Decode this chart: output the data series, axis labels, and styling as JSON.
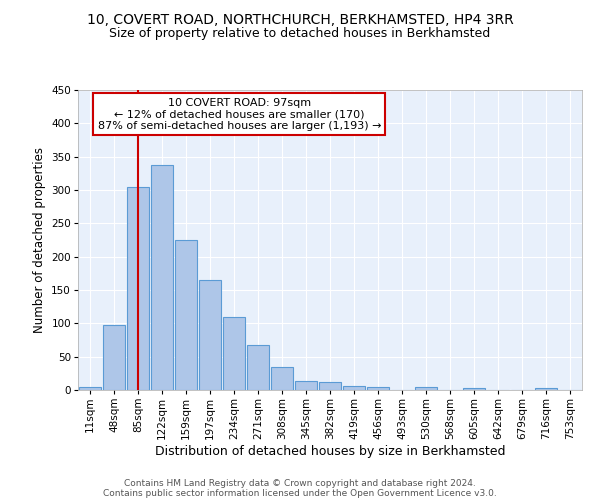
{
  "title1": "10, COVERT ROAD, NORTHCHURCH, BERKHAMSTED, HP4 3RR",
  "title2": "Size of property relative to detached houses in Berkhamsted",
  "xlabel": "Distribution of detached houses by size in Berkhamsted",
  "ylabel": "Number of detached properties",
  "bar_labels": [
    "11sqm",
    "48sqm",
    "85sqm",
    "122sqm",
    "159sqm",
    "197sqm",
    "234sqm",
    "271sqm",
    "308sqm",
    "345sqm",
    "382sqm",
    "419sqm",
    "456sqm",
    "493sqm",
    "530sqm",
    "568sqm",
    "605sqm",
    "642sqm",
    "679sqm",
    "716sqm",
    "753sqm"
  ],
  "bar_values": [
    4,
    97,
    304,
    338,
    225,
    165,
    109,
    67,
    35,
    13,
    12,
    6,
    4,
    0,
    4,
    0,
    3,
    0,
    0,
    3,
    0
  ],
  "bar_color": "#aec6e8",
  "bar_edge_color": "#5b9bd5",
  "vline_x": 2,
  "vline_color": "#cc0000",
  "annotation_line1": "10 COVERT ROAD: 97sqm",
  "annotation_line2": "← 12% of detached houses are smaller (170)",
  "annotation_line3": "87% of semi-detached houses are larger (1,193) →",
  "annotation_box_color": "#ffffff",
  "annotation_box_edge": "#cc0000",
  "ylim": [
    0,
    450
  ],
  "yticks": [
    0,
    50,
    100,
    150,
    200,
    250,
    300,
    350,
    400,
    450
  ],
  "background_color": "#e8f0fb",
  "footer_line1": "Contains HM Land Registry data © Crown copyright and database right 2024.",
  "footer_line2": "Contains public sector information licensed under the Open Government Licence v3.0.",
  "title1_fontsize": 10,
  "title2_fontsize": 9,
  "xlabel_fontsize": 9,
  "ylabel_fontsize": 8.5,
  "tick_fontsize": 7.5,
  "footer_fontsize": 6.5,
  "annotation_fontsize": 8
}
